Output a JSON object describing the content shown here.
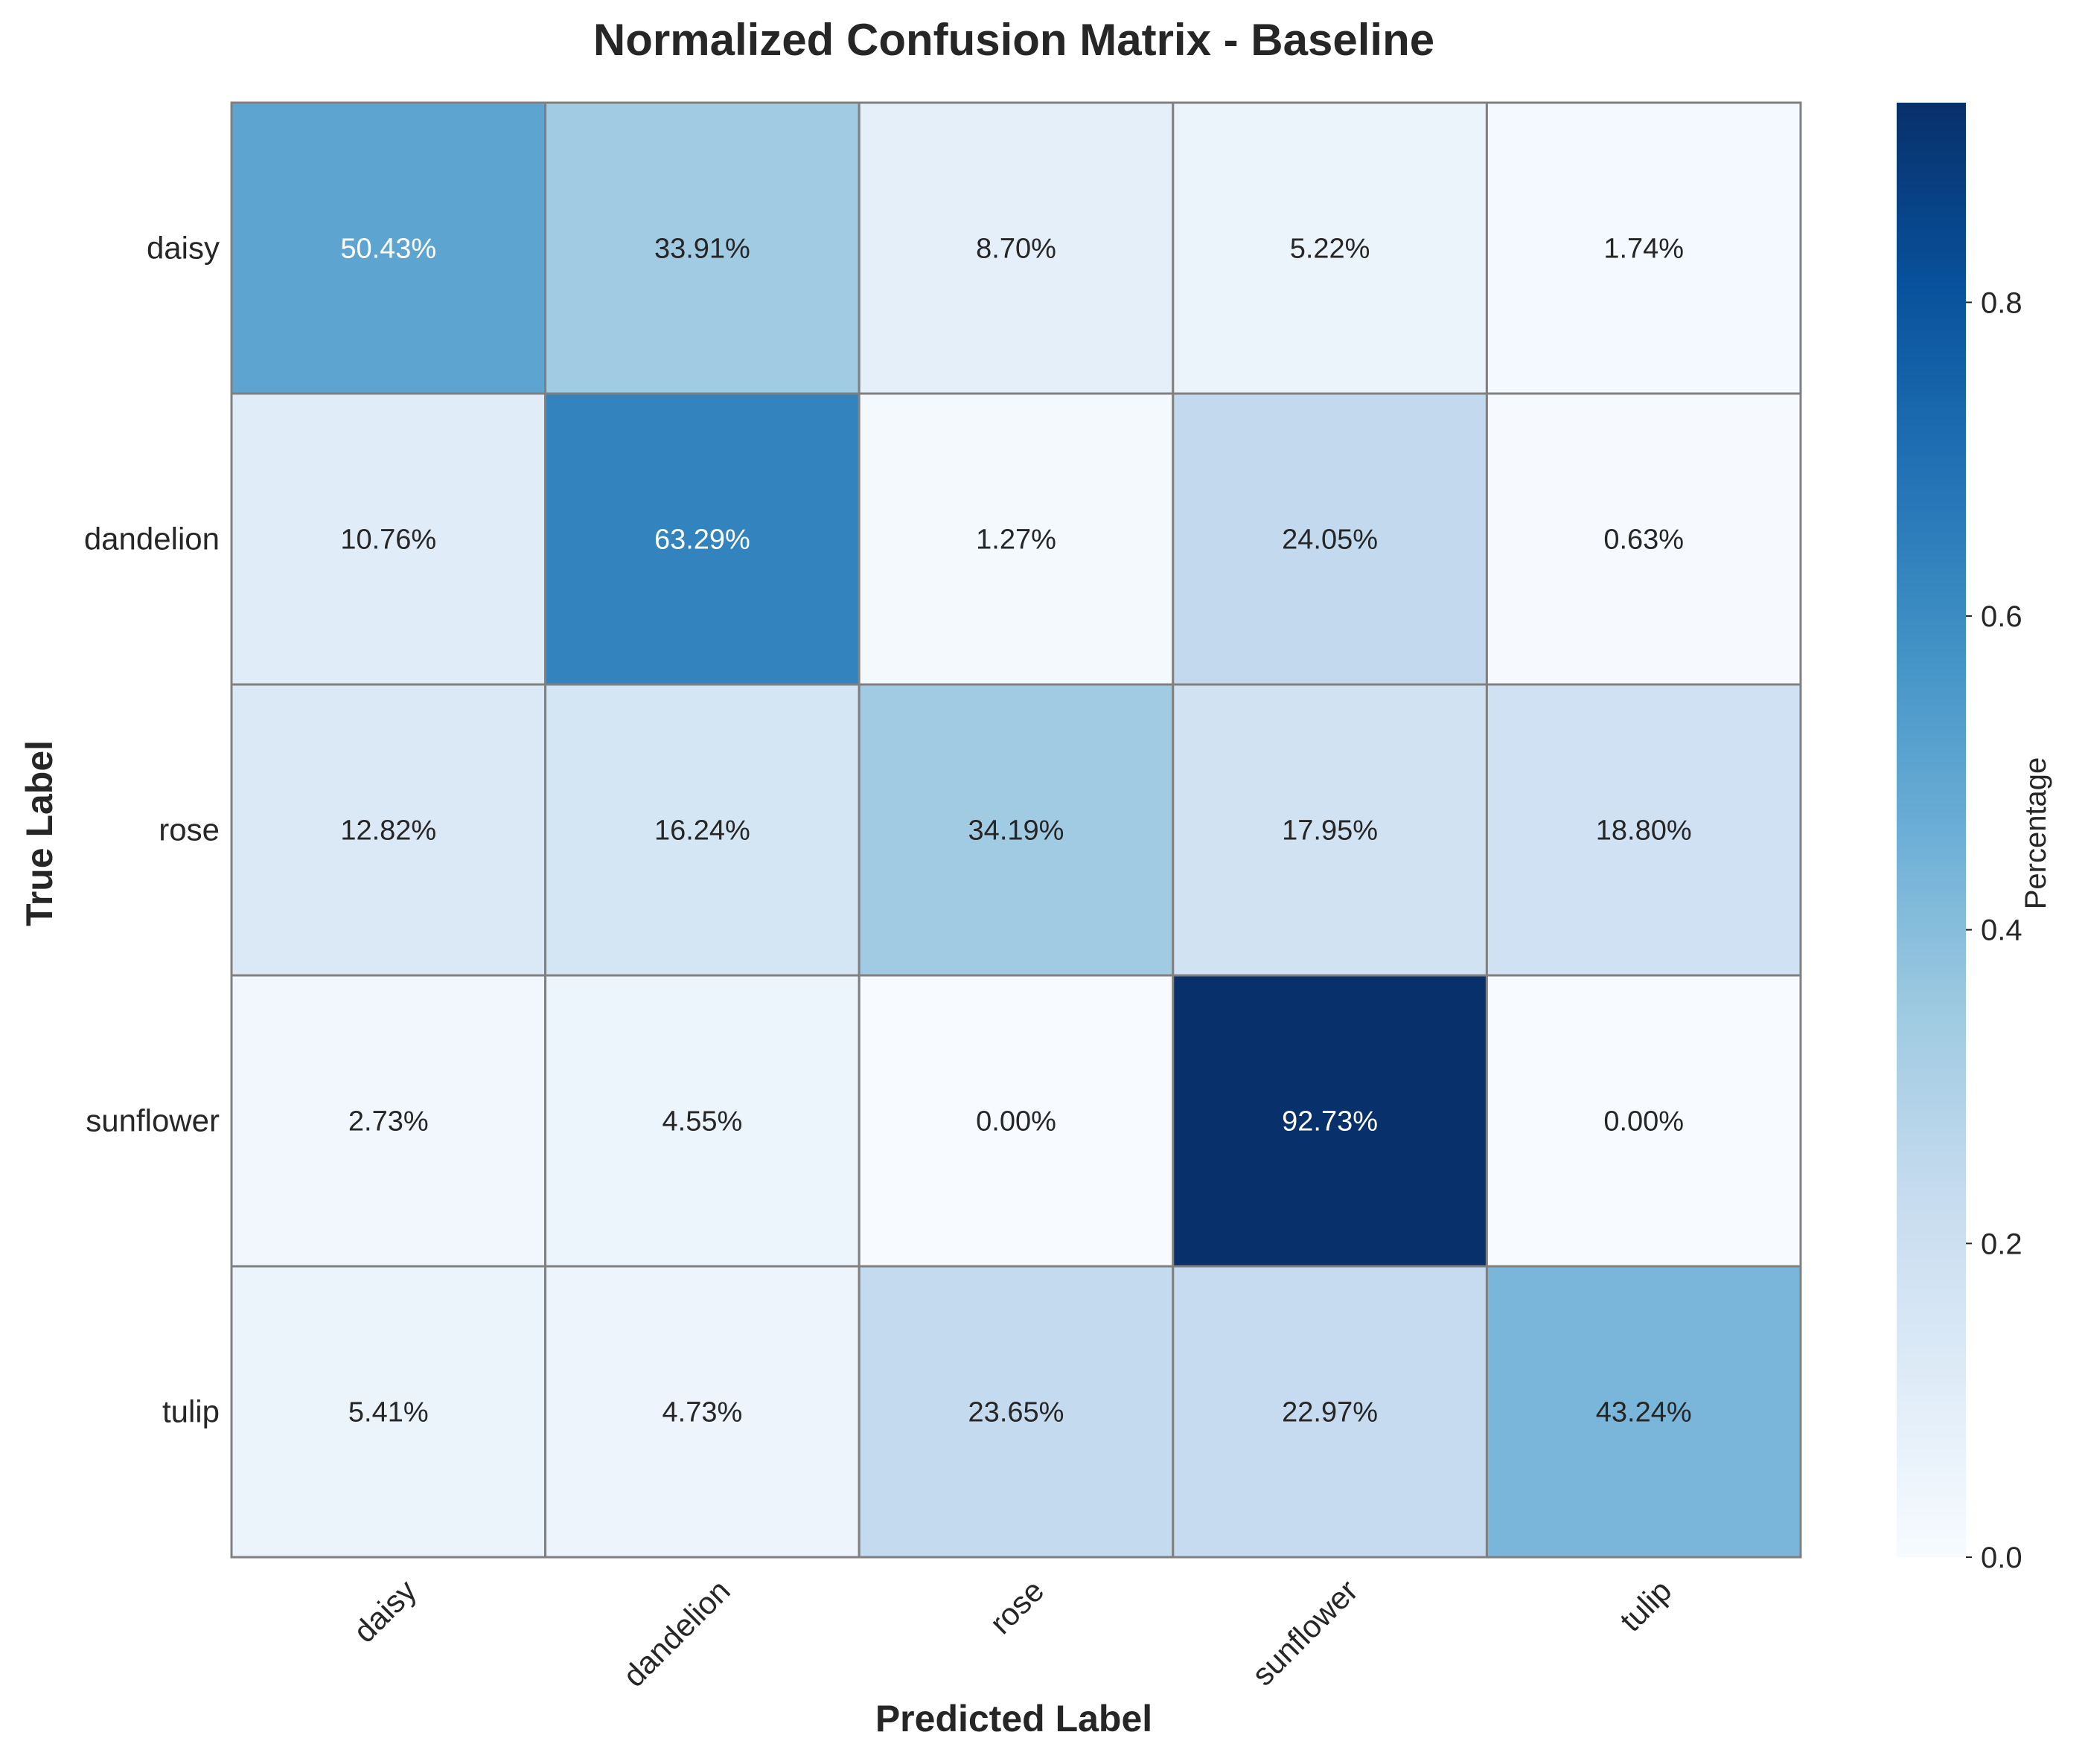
{
  "chart_data": {
    "type": "heatmap",
    "title": "Normalized Confusion Matrix - Baseline",
    "xlabel": "Predicted Label",
    "ylabel": "True Label",
    "x_categories": [
      "daisy",
      "dandelion",
      "rose",
      "sunflower",
      "tulip"
    ],
    "y_categories": [
      "daisy",
      "dandelion",
      "rose",
      "sunflower",
      "tulip"
    ],
    "values": [
      [
        0.5043,
        0.3391,
        0.087,
        0.0522,
        0.0174
      ],
      [
        0.1076,
        0.6329,
        0.0127,
        0.2405,
        0.0063
      ],
      [
        0.1282,
        0.1624,
        0.3419,
        0.1795,
        0.188
      ],
      [
        0.0273,
        0.0455,
        0.0,
        0.9273,
        0.0
      ],
      [
        0.0541,
        0.0473,
        0.2365,
        0.2297,
        0.4324
      ]
    ],
    "cell_labels": [
      [
        "50.43%",
        "33.91%",
        "8.70%",
        "5.22%",
        "1.74%"
      ],
      [
        "10.76%",
        "63.29%",
        "1.27%",
        "24.05%",
        "0.63%"
      ],
      [
        "12.82%",
        "16.24%",
        "34.19%",
        "17.95%",
        "18.80%"
      ],
      [
        "2.73%",
        "4.55%",
        "0.00%",
        "92.73%",
        "0.00%"
      ],
      [
        "5.41%",
        "4.73%",
        "23.65%",
        "22.97%",
        "43.24%"
      ]
    ],
    "colormap": "Blues",
    "colorbar": {
      "label": "Percentage",
      "range": [
        0,
        0.9273
      ],
      "ticks": [
        0.0,
        0.2,
        0.4,
        0.6,
        0.8
      ],
      "tick_labels": [
        "0.0",
        "0.2",
        "0.4",
        "0.6",
        "0.8"
      ]
    },
    "grid": false
  },
  "colors": {
    "cell_border": "#808080",
    "text_dark": "#262626",
    "text_light": "#ffffff"
  }
}
